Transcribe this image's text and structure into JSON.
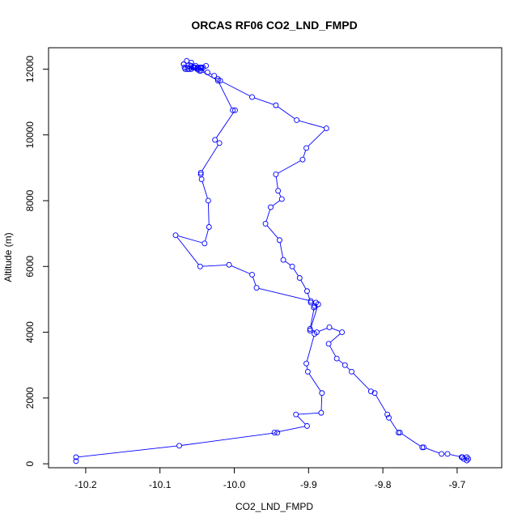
{
  "chart_data": {
    "type": "line",
    "title": "ORCAS RF06 CO2_LND_FMPD",
    "xlabel": "CO2_LND_FMPD",
    "ylabel": "Altitude (m)",
    "xlim": [
      -10.25,
      -9.64
    ],
    "ylim": [
      -120,
      12650
    ],
    "xticks": [
      -10.2,
      -10.1,
      -10.0,
      -9.9,
      -9.8,
      -9.7
    ],
    "xtick_labels": [
      "-10.2",
      "-10.1",
      "-10.0",
      "-9.9",
      "-9.8",
      "-9.7"
    ],
    "yticks": [
      0,
      2000,
      4000,
      6000,
      8000,
      10000,
      12000
    ],
    "ytick_labels": [
      "0",
      "2000",
      "4000",
      "6000",
      "8000",
      "10000",
      "12000"
    ],
    "grid": false,
    "series": [
      {
        "color": "#0000ff",
        "marker": "open-circle",
        "x": [
          -10.213,
          -10.213,
          -10.074,
          -9.942,
          -9.946,
          -9.902,
          -9.917,
          -9.883,
          -9.882,
          -9.901,
          -9.903,
          -9.892,
          -9.898,
          -9.887,
          -9.893,
          -9.897,
          -9.902,
          -9.912,
          -9.922,
          -9.934,
          -9.939,
          -9.958,
          -9.951,
          -9.936,
          -9.941,
          -9.944,
          -9.908,
          -9.903,
          -9.876,
          -9.916,
          -9.944,
          -9.976,
          -10.019,
          -10.022,
          -10.027,
          -10.036,
          -10.048,
          -10.058,
          -10.067,
          -10.066,
          -10.054,
          -10.052,
          -10.045,
          -10.042,
          -10.038,
          -10.044,
          -10.046,
          -10.05,
          -10.058,
          -10.053,
          -10.068,
          -10.058,
          -10.064,
          -10.049,
          -10.061,
          -10.055,
          -10.068,
          -10.063,
          -10.047,
          -10.045,
          -10.022,
          -10.002,
          -9.999,
          -10.026,
          -10.02,
          -10.045,
          -10.045,
          -10.044,
          -10.035,
          -10.034,
          -10.04,
          -10.079,
          -10.046,
          -10.007,
          -9.976,
          -9.97,
          -9.897,
          -9.89,
          -9.892,
          -9.898,
          -9.889,
          -9.872,
          -9.855,
          -9.873,
          -9.862,
          -9.851,
          -9.842,
          -9.816,
          -9.811,
          -9.794,
          -9.792,
          -9.779,
          -9.777,
          -9.747,
          -9.745,
          -9.721,
          -9.713,
          -9.693,
          -9.694,
          -9.687,
          -9.685,
          -9.687,
          -9.691
        ],
        "y": [
          80,
          200,
          550,
          950,
          950,
          1150,
          1500,
          1550,
          2150,
          2800,
          3050,
          3950,
          4050,
          4850,
          4750,
          4900,
          5250,
          5650,
          6000,
          6200,
          6800,
          7300,
          7800,
          8050,
          8300,
          8800,
          9250,
          9600,
          10200,
          10450,
          10900,
          11150,
          11650,
          11700,
          11800,
          11900,
          12000,
          12000,
          12050,
          12000,
          12050,
          12100,
          12050,
          12050,
          12100,
          12050,
          12050,
          12000,
          12100,
          12050,
          12150,
          12200,
          12250,
          12050,
          12000,
          12050,
          12150,
          12000,
          11950,
          11950,
          11650,
          10750,
          10750,
          9850,
          9750,
          8850,
          8800,
          8650,
          8000,
          7200,
          6700,
          6950,
          6000,
          6050,
          5750,
          5350,
          4950,
          4900,
          4800,
          4100,
          4000,
          4150,
          4000,
          3650,
          3200,
          3000,
          2800,
          2200,
          2150,
          1500,
          1400,
          950,
          950,
          500,
          500,
          300,
          300,
          200,
          200,
          200,
          150,
          100,
          150
        ]
      }
    ]
  }
}
